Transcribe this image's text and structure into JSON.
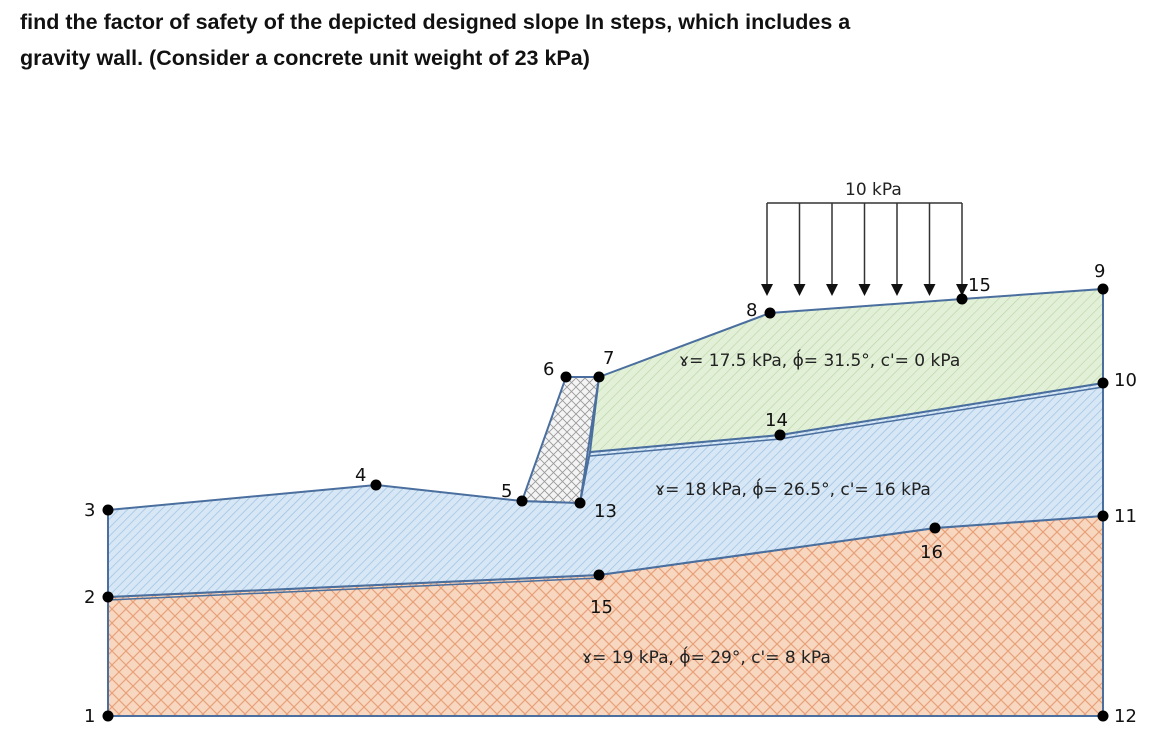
{
  "question": {
    "line1": "find the factor of safety of the depicted designed slope In steps, which includes a",
    "line2": "gravity wall. (Consider a concrete unit weight of 23 kPa)"
  },
  "load": {
    "label": "10 kPa",
    "arrow_count": 7
  },
  "layers": [
    {
      "label": "ɤ= 17.5 kPa, ϕ́= 31.5°, c'= 0 kPa",
      "fill": "#e3f0d8"
    },
    {
      "label": "ɤ= 18 kPa, ϕ́= 26.5°, c'= 16 kPa",
      "fill": "#d7e7f5"
    },
    {
      "label": "ɤ= 19 kPa, ϕ́= 29°, c'= 8 kPa",
      "fill": "#f7d7c0"
    }
  ],
  "wall": {
    "fill": "#f4f4f4"
  },
  "colors": {
    "boundary": "#4a6f9e",
    "point": "#000000"
  },
  "points": [
    {
      "id": "p1",
      "label": "1"
    },
    {
      "id": "p2",
      "label": "2"
    },
    {
      "id": "p3",
      "label": "3"
    },
    {
      "id": "p4",
      "label": "4"
    },
    {
      "id": "p5",
      "label": "5"
    },
    {
      "id": "p6",
      "label": "6"
    },
    {
      "id": "p7",
      "label": "7"
    },
    {
      "id": "p8",
      "label": "8"
    },
    {
      "id": "p9",
      "label": "9"
    },
    {
      "id": "p10",
      "label": "10"
    },
    {
      "id": "p11",
      "label": "11"
    },
    {
      "id": "p12",
      "label": "12"
    },
    {
      "id": "p13",
      "label": "13"
    },
    {
      "id": "p14",
      "label": "14"
    },
    {
      "id": "p15a",
      "label": "15"
    },
    {
      "id": "p15b",
      "label": "15"
    },
    {
      "id": "p16",
      "label": "16"
    }
  ]
}
